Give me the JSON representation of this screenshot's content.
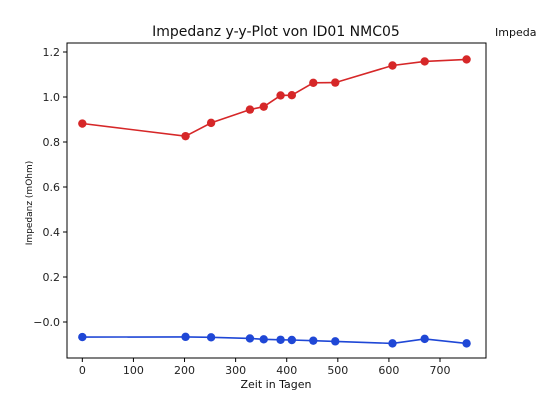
{
  "side_text": "Impeda",
  "chart_data": {
    "type": "line",
    "title": "Impedanz y-y-Plot von ID01 NMC05",
    "xlabel": "Zeit in Tagen",
    "ylabel": "Impedanz (mOhm)",
    "xlim": [
      -30,
      790
    ],
    "ylim": [
      -0.16,
      1.24
    ],
    "xticks": [
      0,
      100,
      200,
      300,
      400,
      500,
      600,
      700
    ],
    "yticks": [
      -0.0,
      0.2,
      0.4,
      0.6,
      0.8,
      1.0,
      1.2
    ],
    "ytick_labels": [
      "−0.0",
      "0.2",
      "0.4",
      "0.6",
      "0.8",
      "1.0",
      "1.2"
    ],
    "grid": false,
    "series": [
      {
        "color": "#d62728",
        "x": [
          0,
          202,
          252,
          328,
          355,
          388,
          410,
          452,
          495,
          607,
          670,
          752
        ],
        "y": [
          0.882,
          0.826,
          0.885,
          0.944,
          0.957,
          1.007,
          1.008,
          1.063,
          1.064,
          1.14,
          1.158,
          1.167
        ]
      },
      {
        "color": "#1f47d6",
        "x": [
          0,
          202,
          252,
          328,
          355,
          388,
          410,
          452,
          495,
          607,
          670,
          752
        ],
        "y": [
          -0.067,
          -0.066,
          -0.068,
          -0.073,
          -0.077,
          -0.079,
          -0.08,
          -0.083,
          -0.086,
          -0.095,
          -0.075,
          -0.095
        ]
      }
    ]
  }
}
